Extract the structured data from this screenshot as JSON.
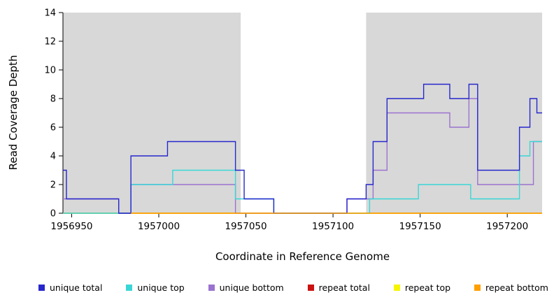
{
  "figure": {
    "x_axis_title": "Coordinate in Reference Genome",
    "y_axis_title": "Read Coverage Depth"
  },
  "chart_data": {
    "type": "line",
    "subtype": "step",
    "title": "",
    "xlabel": "Coordinate in Reference Genome",
    "ylabel": "Read Coverage Depth",
    "xlim": [
      1956945,
      1957220
    ],
    "ylim": [
      0,
      14
    ],
    "x_ticks": [
      1956950,
      1957000,
      1957050,
      1957100,
      1957150,
      1957200
    ],
    "y_ticks": [
      0,
      2,
      4,
      6,
      8,
      10,
      12,
      14
    ],
    "grid": false,
    "legend_position": "bottom",
    "background_color": "#ffffff",
    "shaded_regions": [
      {
        "name": "left-gray-region",
        "x0": 1956945,
        "x1": 1957047,
        "color": "#d8d8d8"
      },
      {
        "name": "right-gray-region",
        "x0": 1957119,
        "x1": 1957220,
        "color": "#d8d8d8"
      }
    ],
    "x_end": 1957220,
    "series": [
      {
        "id": "repeat-total",
        "name": "repeat total",
        "color": "#cc1111",
        "points": [
          [
            1956945,
            0
          ]
        ]
      },
      {
        "id": "repeat-top",
        "name": "repeat top",
        "color": "#f5f500",
        "points": [
          [
            1956945,
            0
          ]
        ]
      },
      {
        "id": "unique-bottom",
        "name": "unique bottom",
        "color": "#9b72cf",
        "points": [
          [
            1956945,
            1
          ],
          [
            1956977,
            0
          ],
          [
            1956984,
            2
          ],
          [
            1957044,
            0
          ],
          [
            1957108,
            1
          ],
          [
            1957123,
            3
          ],
          [
            1957131,
            7
          ],
          [
            1957167,
            6
          ],
          [
            1957178,
            8
          ],
          [
            1957183,
            2
          ],
          [
            1957215,
            5
          ]
        ]
      },
      {
        "id": "unique-top",
        "name": "unique top",
        "color": "#3ad6d6",
        "points": [
          [
            1956945,
            0
          ],
          [
            1956984,
            2
          ],
          [
            1957008,
            3
          ],
          [
            1957044,
            1
          ],
          [
            1957066,
            0
          ],
          [
            1957121,
            1
          ],
          [
            1957149,
            2
          ],
          [
            1957179,
            1
          ],
          [
            1957207,
            4
          ],
          [
            1957213,
            5
          ]
        ]
      },
      {
        "id": "unique-total",
        "name": "unique total",
        "color": "#2727cc",
        "points": [
          [
            1956945,
            3
          ],
          [
            1956947,
            1
          ],
          [
            1956977,
            0
          ],
          [
            1956984,
            4
          ],
          [
            1957005,
            5
          ],
          [
            1957044,
            3
          ],
          [
            1957049,
            1
          ],
          [
            1957066,
            0
          ],
          [
            1957108,
            1
          ],
          [
            1957119,
            2
          ],
          [
            1957123,
            5
          ],
          [
            1957131,
            8
          ],
          [
            1957152,
            9
          ],
          [
            1957167,
            8
          ],
          [
            1957178,
            9
          ],
          [
            1957183,
            3
          ],
          [
            1957207,
            6
          ],
          [
            1957213,
            8
          ],
          [
            1957217,
            7
          ]
        ]
      },
      {
        "id": "repeat-bottom",
        "name": "repeat bottom",
        "color": "#ff9f00",
        "points": [
          [
            1956984,
            0
          ]
        ]
      }
    ]
  },
  "legend": {
    "items": [
      {
        "label": "unique total",
        "color": "#2727cc"
      },
      {
        "label": "unique top",
        "color": "#3ad6d6"
      },
      {
        "label": "unique bottom",
        "color": "#9b72cf"
      },
      {
        "label": "repeat total",
        "color": "#cc1111"
      },
      {
        "label": "repeat top",
        "color": "#f5f500"
      },
      {
        "label": "repeat bottom",
        "color": "#ff9f00"
      }
    ]
  }
}
